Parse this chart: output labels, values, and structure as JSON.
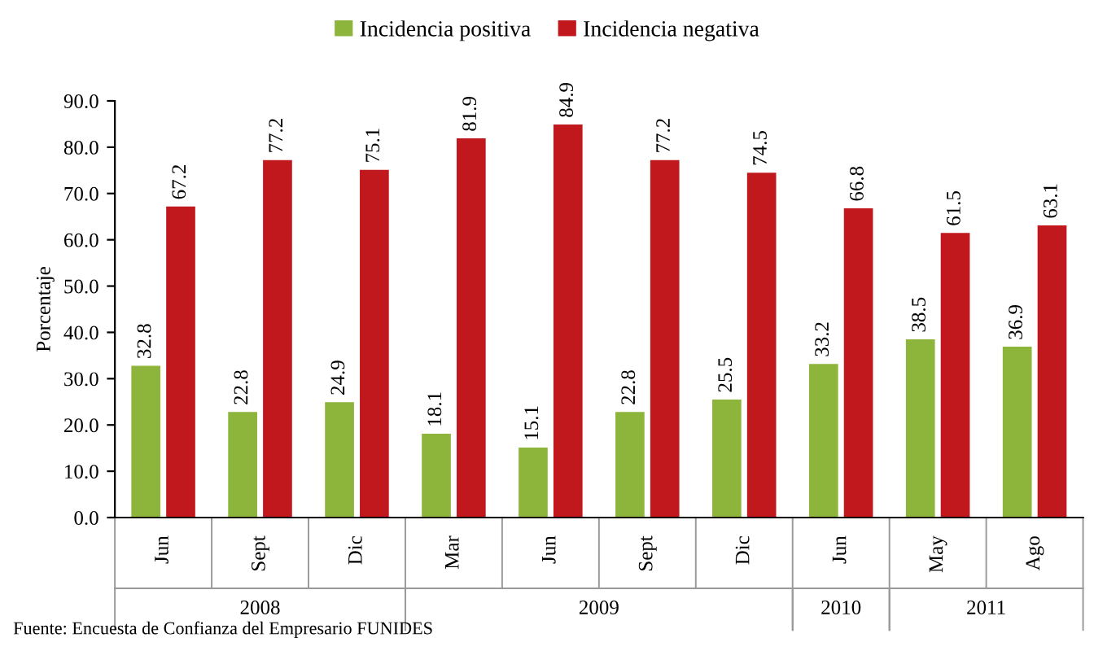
{
  "chart_data": {
    "type": "bar",
    "ylabel": "Porcentaje",
    "categories": [
      "Jun",
      "Sept",
      "Dic",
      "Mar",
      "Jun",
      "Sept",
      "Dic",
      "Jun",
      "May",
      "Ago"
    ],
    "series": [
      {
        "name": "Incidencia positiva",
        "color": "#8db53c",
        "values": [
          32.8,
          22.8,
          24.9,
          18.1,
          15.1,
          22.8,
          25.5,
          33.2,
          38.5,
          36.9
        ]
      },
      {
        "name": "Incidencia negativa",
        "color": "#c0181c",
        "values": [
          67.2,
          77.2,
          75.1,
          81.9,
          84.9,
          77.2,
          74.5,
          66.8,
          61.5,
          63.1
        ]
      }
    ],
    "ylim": [
      0,
      90
    ],
    "yticks": [
      {
        "value": 0,
        "label": "0.0"
      },
      {
        "value": 10,
        "label": "10.0"
      },
      {
        "value": 20,
        "label": "20.0"
      },
      {
        "value": 30,
        "label": "30.0"
      },
      {
        "value": 40,
        "label": "40.0"
      },
      {
        "value": 50,
        "label": "50.0"
      },
      {
        "value": 60,
        "label": "60.0"
      },
      {
        "value": 70,
        "label": "70.0"
      },
      {
        "value": 80,
        "label": "80.0"
      },
      {
        "value": 90,
        "label": "90.0"
      }
    ],
    "data_labels": true,
    "legend": "top",
    "grid": false,
    "annotations": [
      "2008",
      "2009",
      "2010",
      "2011",
      "Fuente: Encuesta de Confianza del Empresario FUNIDES"
    ]
  }
}
